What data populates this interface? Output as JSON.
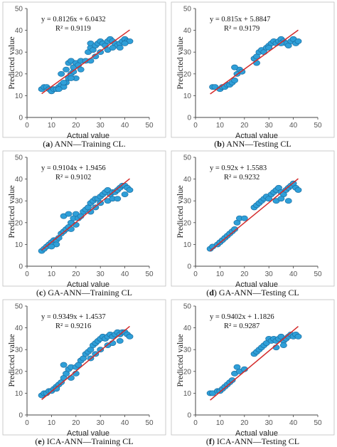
{
  "chart_data": [
    {
      "type": "scatter",
      "caption": {
        "letter": "a",
        "text": "ANN—Training CL."
      },
      "equation": "y = 0.8126x + 6.0432",
      "r2": "R² = 0.9119",
      "xlabel": "Actual value",
      "ylabel": "Predicted value",
      "xlim": [
        0,
        50
      ],
      "ylim": [
        0,
        50
      ],
      "xticks": [
        "0",
        "10",
        "20",
        "30",
        "40",
        "50"
      ],
      "yticks": [
        "0",
        "10",
        "20",
        "30",
        "40",
        "50"
      ],
      "fit": {
        "slope": 0.8126,
        "intercept": 6.0432,
        "x_range": [
          6,
          42
        ]
      },
      "points": [
        [
          6,
          13
        ],
        [
          7,
          14
        ],
        [
          8,
          14
        ],
        [
          9,
          13
        ],
        [
          10,
          12
        ],
        [
          11,
          13
        ],
        [
          12,
          13
        ],
        [
          13,
          14
        ],
        [
          14,
          15
        ],
        [
          15,
          14
        ],
        [
          16,
          16
        ],
        [
          17,
          18
        ],
        [
          18,
          20
        ],
        [
          19,
          21
        ],
        [
          16,
          22
        ],
        [
          14,
          20
        ],
        [
          17,
          25
        ],
        [
          18,
          26
        ],
        [
          20,
          25
        ],
        [
          19,
          23
        ],
        [
          21,
          24
        ],
        [
          22,
          26
        ],
        [
          24,
          26
        ],
        [
          25,
          30
        ],
        [
          26,
          32
        ],
        [
          26,
          34
        ],
        [
          27,
          31
        ],
        [
          28,
          33
        ],
        [
          29,
          34
        ],
        [
          30,
          35
        ],
        [
          31,
          34
        ],
        [
          32,
          33
        ],
        [
          33,
          35
        ],
        [
          34,
          36
        ],
        [
          35,
          35
        ],
        [
          36,
          34
        ],
        [
          37,
          33
        ],
        [
          38,
          34
        ],
        [
          39,
          35
        ],
        [
          40,
          36
        ],
        [
          41,
          35
        ],
        [
          42,
          35
        ],
        [
          26,
          26
        ],
        [
          28,
          28
        ],
        [
          30,
          30
        ],
        [
          33,
          31
        ],
        [
          35,
          32
        ],
        [
          38,
          32
        ],
        [
          40,
          34
        ],
        [
          22,
          22
        ],
        [
          20,
          18
        ],
        [
          18,
          18
        ],
        [
          15,
          16
        ],
        [
          13,
          13
        ]
      ]
    },
    {
      "type": "scatter",
      "caption": {
        "letter": "b",
        "text": "ANN—Testing CL"
      },
      "equation": "y = 0.815x + 5.8847",
      "r2": "R² = 0.9179",
      "xlabel": "Actual value",
      "ylabel": "Predicted value",
      "xlim": [
        0,
        50
      ],
      "ylim": [
        0,
        50
      ],
      "xticks": [
        "0",
        "10",
        "20",
        "30",
        "40",
        "50"
      ],
      "yticks": [
        "0",
        "10",
        "20",
        "30",
        "40",
        "50"
      ],
      "fit": {
        "slope": 0.815,
        "intercept": 5.8847,
        "x_range": [
          6,
          42
        ]
      },
      "points": [
        [
          7,
          14
        ],
        [
          8,
          14
        ],
        [
          10,
          13
        ],
        [
          11,
          14
        ],
        [
          12,
          14
        ],
        [
          13,
          15
        ],
        [
          14,
          15
        ],
        [
          15,
          16
        ],
        [
          16,
          17
        ],
        [
          17,
          20
        ],
        [
          18,
          22
        ],
        [
          16,
          23
        ],
        [
          19,
          21
        ],
        [
          24,
          27
        ],
        [
          25,
          28
        ],
        [
          26,
          30
        ],
        [
          27,
          31
        ],
        [
          28,
          30
        ],
        [
          29,
          32
        ],
        [
          30,
          33
        ],
        [
          31,
          34
        ],
        [
          32,
          35
        ],
        [
          33,
          34
        ],
        [
          34,
          35
        ],
        [
          35,
          36
        ],
        [
          36,
          35
        ],
        [
          37,
          34
        ],
        [
          38,
          33
        ],
        [
          39,
          35
        ],
        [
          40,
          36
        ],
        [
          41,
          34
        ],
        [
          42,
          35
        ],
        [
          25,
          25
        ],
        [
          30,
          32
        ],
        [
          35,
          34
        ]
      ]
    },
    {
      "type": "scatter",
      "caption": {
        "letter": "c",
        "text": "GA-ANN—Training CL"
      },
      "equation": "y = 0.9104x + 1.9456",
      "r2": "R² = 0.9102",
      "xlabel": "Actual value",
      "ylabel": "Predicted value",
      "xlim": [
        0,
        50
      ],
      "ylim": [
        0,
        50
      ],
      "xticks": [
        "0",
        "10",
        "20",
        "30",
        "40",
        "50"
      ],
      "yticks": [
        "0",
        "10",
        "20",
        "30",
        "40",
        "50"
      ],
      "fit": {
        "slope": 0.9104,
        "intercept": 1.9456,
        "x_range": [
          6,
          42
        ]
      },
      "points": [
        [
          6,
          7
        ],
        [
          7,
          8
        ],
        [
          8,
          9
        ],
        [
          9,
          10
        ],
        [
          10,
          11
        ],
        [
          11,
          12
        ],
        [
          12,
          12
        ],
        [
          13,
          13
        ],
        [
          14,
          15
        ],
        [
          15,
          16
        ],
        [
          16,
          17
        ],
        [
          17,
          18
        ],
        [
          18,
          20
        ],
        [
          19,
          22
        ],
        [
          15,
          23
        ],
        [
          17,
          24
        ],
        [
          20,
          24
        ],
        [
          21,
          22
        ],
        [
          22,
          23
        ],
        [
          23,
          25
        ],
        [
          24,
          26
        ],
        [
          25,
          27
        ],
        [
          26,
          29
        ],
        [
          27,
          30
        ],
        [
          28,
          31
        ],
        [
          29,
          31
        ],
        [
          30,
          32
        ],
        [
          31,
          33
        ],
        [
          32,
          34
        ],
        [
          33,
          35
        ],
        [
          34,
          33
        ],
        [
          35,
          34
        ],
        [
          36,
          34
        ],
        [
          37,
          35
        ],
        [
          38,
          36
        ],
        [
          39,
          37
        ],
        [
          40,
          37
        ],
        [
          41,
          36
        ],
        [
          42,
          35
        ],
        [
          26,
          25
        ],
        [
          28,
          27
        ],
        [
          30,
          29
        ],
        [
          33,
          30
        ],
        [
          35,
          31
        ],
        [
          37,
          31
        ],
        [
          40,
          33
        ],
        [
          20,
          19
        ],
        [
          18,
          17
        ],
        [
          12,
          10
        ],
        [
          10,
          9
        ]
      ]
    },
    {
      "type": "scatter",
      "caption": {
        "letter": "d",
        "text": "GA-ANN—Testing CL"
      },
      "equation": "y = 0.92x + 1.5583",
      "r2": "R² = 0.9232",
      "xlabel": "Actual value",
      "ylabel": "Predicted value",
      "xlim": [
        0,
        50
      ],
      "ylim": [
        0,
        50
      ],
      "xticks": [
        "0",
        "10",
        "20",
        "30",
        "40",
        "50"
      ],
      "yticks": [
        "0",
        "10",
        "20",
        "30",
        "40",
        "50"
      ],
      "fit": {
        "slope": 0.92,
        "intercept": 1.5583,
        "x_range": [
          6,
          42
        ]
      },
      "points": [
        [
          6,
          8
        ],
        [
          7,
          9
        ],
        [
          9,
          10
        ],
        [
          10,
          11
        ],
        [
          11,
          12
        ],
        [
          12,
          13
        ],
        [
          13,
          14
        ],
        [
          14,
          15
        ],
        [
          15,
          16
        ],
        [
          16,
          17
        ],
        [
          17,
          20
        ],
        [
          18,
          22
        ],
        [
          20,
          22
        ],
        [
          24,
          27
        ],
        [
          25,
          28
        ],
        [
          26,
          29
        ],
        [
          27,
          30
        ],
        [
          28,
          31
        ],
        [
          29,
          32
        ],
        [
          30,
          31
        ],
        [
          31,
          33
        ],
        [
          32,
          34
        ],
        [
          33,
          35
        ],
        [
          34,
          36
        ],
        [
          35,
          34
        ],
        [
          36,
          33
        ],
        [
          37,
          35
        ],
        [
          38,
          36
        ],
        [
          39,
          37
        ],
        [
          40,
          38
        ],
        [
          41,
          36
        ],
        [
          42,
          35
        ],
        [
          33,
          30
        ],
        [
          35,
          31
        ],
        [
          38,
          30
        ]
      ]
    },
    {
      "type": "scatter",
      "caption": {
        "letter": "e",
        "text": "ICA-ANN—Training CL"
      },
      "equation": "y = 0.9349x + 1.4537",
      "r2": "R² = 0.9216",
      "xlabel": "Actual value",
      "ylabel": "Predicted value",
      "xlim": [
        0,
        50
      ],
      "ylim": [
        0,
        50
      ],
      "xticks": [
        "0",
        "10",
        "20",
        "30",
        "40",
        "50"
      ],
      "yticks": [
        "0",
        "10",
        "20",
        "30",
        "40",
        "50"
      ],
      "fit": {
        "slope": 0.9349,
        "intercept": 1.4537,
        "x_range": [
          6,
          42
        ]
      },
      "points": [
        [
          6,
          9
        ],
        [
          7,
          10
        ],
        [
          8,
          10
        ],
        [
          9,
          11
        ],
        [
          10,
          11
        ],
        [
          11,
          12
        ],
        [
          12,
          13
        ],
        [
          13,
          14
        ],
        [
          14,
          15
        ],
        [
          15,
          17
        ],
        [
          16,
          19
        ],
        [
          17,
          21
        ],
        [
          15,
          23
        ],
        [
          18,
          22
        ],
        [
          20,
          22
        ],
        [
          21,
          23
        ],
        [
          22,
          25
        ],
        [
          23,
          26
        ],
        [
          24,
          28
        ],
        [
          25,
          29
        ],
        [
          26,
          30
        ],
        [
          27,
          32
        ],
        [
          28,
          33
        ],
        [
          29,
          34
        ],
        [
          30,
          35
        ],
        [
          31,
          36
        ],
        [
          32,
          35
        ],
        [
          33,
          36
        ],
        [
          34,
          37
        ],
        [
          35,
          36
        ],
        [
          36,
          37
        ],
        [
          37,
          38
        ],
        [
          38,
          37
        ],
        [
          39,
          38
        ],
        [
          40,
          38
        ],
        [
          41,
          37
        ],
        [
          42,
          36
        ],
        [
          26,
          26
        ],
        [
          28,
          28
        ],
        [
          30,
          30
        ],
        [
          33,
          32
        ],
        [
          35,
          33
        ],
        [
          38,
          34
        ],
        [
          20,
          19
        ],
        [
          18,
          17
        ],
        [
          12,
          12
        ]
      ]
    },
    {
      "type": "scatter",
      "caption": {
        "letter": "f",
        "text": "ICA-ANN—Testing CL"
      },
      "equation": "y = 0.9402x + 1.1826",
      "r2": "R² = 0.9287",
      "xlabel": "Actual value",
      "ylabel": "Predicted value",
      "xlim": [
        0,
        50
      ],
      "ylim": [
        0,
        50
      ],
      "xticks": [
        "0",
        "10",
        "20",
        "30",
        "40",
        "50"
      ],
      "yticks": [
        "0",
        "10",
        "20",
        "30",
        "40",
        "50"
      ],
      "fit": {
        "slope": 0.9402,
        "intercept": 1.1826,
        "x_range": [
          6,
          42
        ]
      },
      "points": [
        [
          6,
          10
        ],
        [
          7,
          10
        ],
        [
          9,
          11
        ],
        [
          10,
          11
        ],
        [
          11,
          12
        ],
        [
          12,
          13
        ],
        [
          13,
          14
        ],
        [
          14,
          15
        ],
        [
          15,
          16
        ],
        [
          16,
          19
        ],
        [
          17,
          22
        ],
        [
          18,
          20
        ],
        [
          20,
          21
        ],
        [
          24,
          28
        ],
        [
          25,
          29
        ],
        [
          26,
          30
        ],
        [
          27,
          31
        ],
        [
          28,
          32
        ],
        [
          29,
          33
        ],
        [
          30,
          35
        ],
        [
          31,
          34
        ],
        [
          32,
          35
        ],
        [
          33,
          34
        ],
        [
          34,
          35
        ],
        [
          35,
          36
        ],
        [
          36,
          34
        ],
        [
          37,
          35
        ],
        [
          38,
          36
        ],
        [
          39,
          37
        ],
        [
          40,
          36
        ],
        [
          41,
          37
        ],
        [
          42,
          36
        ],
        [
          33,
          31
        ],
        [
          36,
          32
        ]
      ]
    }
  ],
  "colors": {
    "point": "#2f9fd8",
    "point_edge": "#1b6fa3",
    "fit_line": "#d42a2a",
    "axis": "#444444",
    "tick": "#555555",
    "frame": "#bfbfbf"
  }
}
